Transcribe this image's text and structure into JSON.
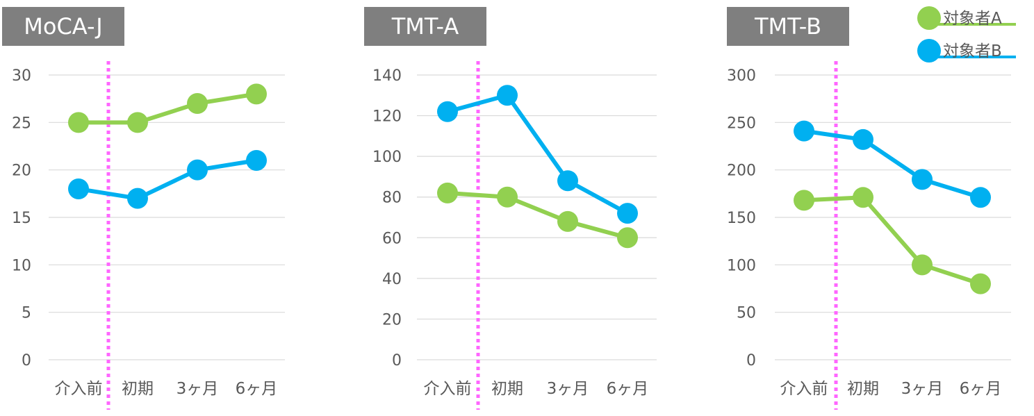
{
  "legend": {
    "placement": "top-right",
    "entries": [
      {
        "label": "対象者A",
        "color": "#92d050"
      },
      {
        "label": "対象者B",
        "color": "#00b0f0"
      }
    ]
  },
  "colors": {
    "title_bg": "#7f7f7f",
    "title_text": "#ffffff",
    "grid": "#d9d9d9",
    "tick_text": "#595959",
    "divider": "#ff66ff"
  },
  "divider_style": "dotted line between 介入前 and 初期",
  "chart_data": [
    {
      "type": "line",
      "title": "MoCA-J",
      "categories": [
        "介入前",
        "初期",
        "3ヶ月",
        "6ヶ月"
      ],
      "ylim": [
        0,
        30
      ],
      "yticks": [
        0,
        5,
        10,
        15,
        20,
        25,
        30
      ],
      "grid": true,
      "series": [
        {
          "name": "対象者A",
          "values": [
            25,
            25,
            27,
            28
          ]
        },
        {
          "name": "対象者B",
          "values": [
            18,
            17,
            20,
            21
          ]
        }
      ]
    },
    {
      "type": "line",
      "title": "TMT-A",
      "categories": [
        "介入前",
        "初期",
        "3ヶ月",
        "6ヶ月"
      ],
      "ylim": [
        0,
        140
      ],
      "yticks": [
        0,
        20,
        40,
        60,
        80,
        100,
        120,
        140
      ],
      "grid": true,
      "series": [
        {
          "name": "対象者A",
          "values": [
            82,
            80,
            68,
            60
          ]
        },
        {
          "name": "対象者B",
          "values": [
            122,
            130,
            88,
            72
          ]
        }
      ]
    },
    {
      "type": "line",
      "title": "TMT-B",
      "categories": [
        "介入前",
        "初期",
        "3ヶ月",
        "6ヶ月"
      ],
      "ylim": [
        0,
        300
      ],
      "yticks": [
        0,
        50,
        100,
        150,
        200,
        250,
        300
      ],
      "grid": true,
      "series": [
        {
          "name": "対象者A",
          "values": [
            168,
            171,
            100,
            80
          ]
        },
        {
          "name": "対象者B",
          "values": [
            241,
            232,
            190,
            171
          ]
        }
      ]
    }
  ]
}
